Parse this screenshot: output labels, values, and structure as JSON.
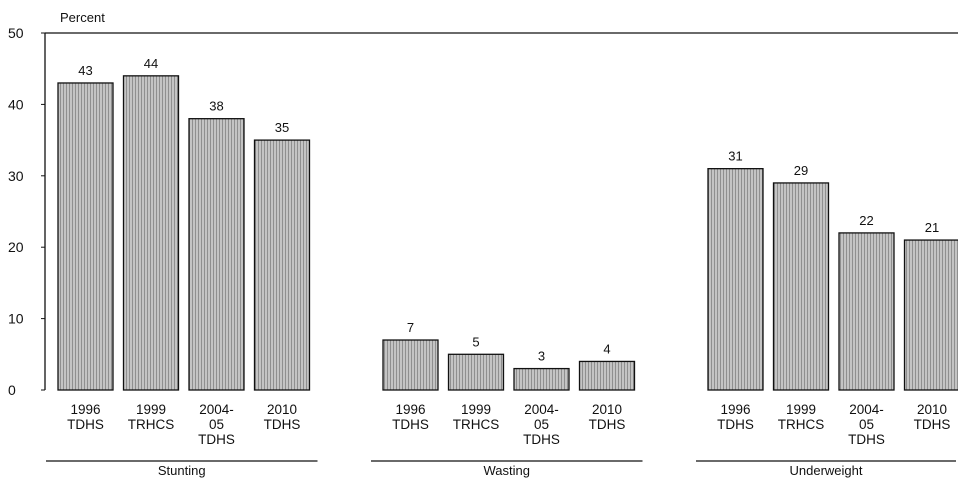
{
  "chart_data": {
    "type": "bar",
    "ylabel": "Percent",
    "ylim": [
      0,
      50
    ],
    "yticks": [
      0,
      10,
      20,
      30,
      40,
      50
    ],
    "grid": false,
    "categories": [
      [
        "1996",
        "TDHS"
      ],
      [
        "1999",
        "TRHCS"
      ],
      [
        "2004-",
        "05",
        "TDHS"
      ],
      [
        "2010",
        "TDHS"
      ]
    ],
    "groups": [
      {
        "name": "Stunting",
        "values": [
          43,
          44,
          38,
          35
        ]
      },
      {
        "name": "Wasting",
        "values": [
          7,
          5,
          3,
          4
        ]
      },
      {
        "name": "Underweight",
        "values": [
          31,
          29,
          22,
          21
        ]
      }
    ]
  },
  "colors": {
    "bar_fill": "#c4c4c4",
    "bar_stripe": "#8f8f8f",
    "bar_outline": "#111111",
    "axis": "#111111"
  }
}
